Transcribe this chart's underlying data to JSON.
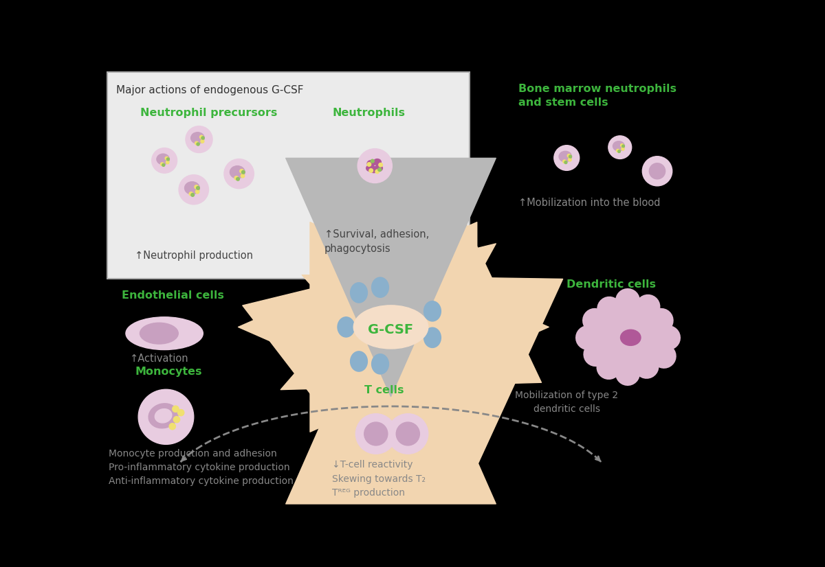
{
  "bg": "#000000",
  "box_bg": "#ebebeb",
  "box_border": "#aaaaaa",
  "gcsf_color": "#f5dec8",
  "gcsf_text_color": "#3db53d",
  "arrow_peach": "#f2d5b0",
  "arrow_gray": "#b8b8b8",
  "blue_cell": "#8ab0cc",
  "pink_outer": "#c8a0c0",
  "pink_inner": "#b05898",
  "pink_light": "#ddb8d0",
  "pink_lighter": "#e8cce0",
  "yellow_dot": "#f0e070",
  "green_dot": "#90c060",
  "green_label": "#3db53d",
  "gray_text": "#888888",
  "dark_text": "#444444",
  "dashed_color": "#888888",
  "title_text": "Major actions of endogenous G-CSF",
  "lbl_np": "Neutrophil precursors",
  "lbl_n": "Neutrophils",
  "lbl_np_prod": "↑Neutrophil production",
  "lbl_survival": "↑Survival, adhesion,\nphagocytosis",
  "lbl_bm": "Bone marrow neutrophils\nand stem cells",
  "lbl_mob": "↑Mobilization into the blood",
  "lbl_endo": "Endothelial cells",
  "lbl_activ": "↑Activation",
  "lbl_mono": "Monocytes",
  "lbl_mono_text": "Monocyte production and adhesion\nPro-inflammatory cytokine production\nAnti-inflammatory cytokine production",
  "lbl_tcell": "T cells",
  "lbl_tcell_text": "↓T-cell reactivity\nSkewing towards T₂\nTᴿᴱᴳ production",
  "lbl_dend": "Dendritic cells",
  "lbl_dend_text": "Mobilization of type 2\ndendritic cells"
}
